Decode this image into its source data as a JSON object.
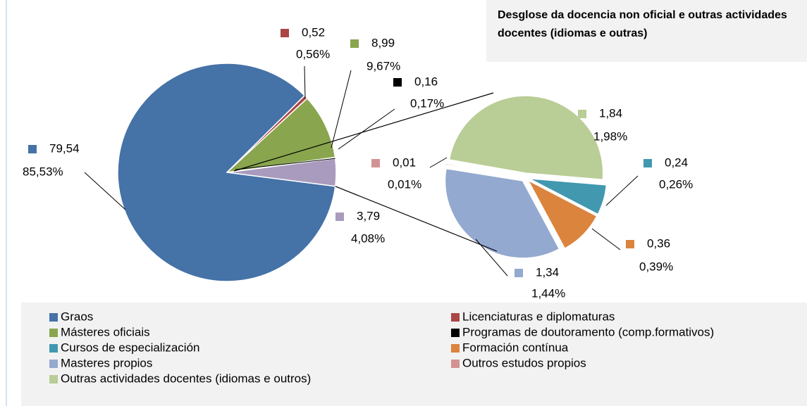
{
  "chart_data": {
    "type": "pie-of-pie",
    "title": "Desglose da docencia non oficial e outras actividades docentes (idiomas  e outras)",
    "categories": [
      "Graos",
      "Licenciaturas e diplomaturas",
      "Másteres oficiais",
      "Programas de doutoramento (comp.formativos)",
      "Cursos de especialización",
      "Formación contínua",
      "Masteres propios",
      "Outros estudos propios",
      "Outras actividades docentes (idiomas e outros)"
    ],
    "values": [
      79.54,
      0.52,
      8.99,
      0.16,
      0.24,
      0.36,
      1.34,
      0.01,
      1.84
    ],
    "value_labels": [
      "79,54",
      "0,52",
      "8,99",
      "0,16",
      "0,24",
      "0,36",
      "1,34",
      "0,01",
      "1,84"
    ],
    "percents": [
      85.53,
      0.56,
      9.67,
      0.17,
      0.26,
      0.39,
      1.44,
      0.01,
      1.98
    ],
    "percent_labels": [
      "85,53%",
      "0,56%",
      "9,67%",
      "0,17%",
      "0,26%",
      "0,39%",
      "1,44%",
      "0,01%",
      "1,98%"
    ],
    "colors": [
      "#4572a7",
      "#aa4643",
      "#89a54e",
      "#000000",
      "#4198af",
      "#db843d",
      "#93a9cf",
      "#d19392",
      "#b9cd96"
    ],
    "secondary_size": 5,
    "other_value": 3.79,
    "other_value_label": "3,79",
    "other_percent": 4.08,
    "other_percent_label": "4,08%",
    "other_color": "#a99bbd",
    "legend": "bottom"
  }
}
